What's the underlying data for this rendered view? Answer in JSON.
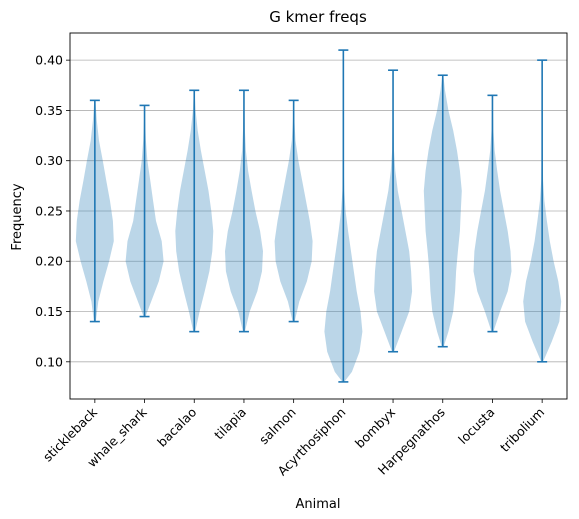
{
  "chart_data": {
    "type": "violin",
    "title": "G kmer freqs",
    "xlabel": "Animal",
    "ylabel": "Frequency",
    "ylim": [
      0.063,
      0.427
    ],
    "yticks": [
      "0.10",
      "0.15",
      "0.20",
      "0.25",
      "0.30",
      "0.35",
      "0.40"
    ],
    "grid": "horizontal",
    "colors": {
      "body": "#1f77b4",
      "body_opacity": 0.3,
      "lines": "#1f77b4",
      "grid": "#b0b0b0"
    },
    "categories": [
      "stickleback",
      "whale_shark",
      "bacalao",
      "tilapia",
      "salmon",
      "Acyrthosiphon",
      "bombyx",
      "Harpegnathos",
      "locusta",
      "tribolium"
    ],
    "series": [
      {
        "min": 0.14,
        "max": 0.36,
        "density": [
          [
            0.14,
            0.05
          ],
          [
            0.16,
            0.18
          ],
          [
            0.18,
            0.45
          ],
          [
            0.2,
            0.75
          ],
          [
            0.22,
            1.0
          ],
          [
            0.24,
            0.95
          ],
          [
            0.26,
            0.8
          ],
          [
            0.28,
            0.6
          ],
          [
            0.3,
            0.42
          ],
          [
            0.32,
            0.22
          ],
          [
            0.34,
            0.1
          ],
          [
            0.36,
            0.03
          ]
        ]
      },
      {
        "min": 0.145,
        "max": 0.355,
        "density": [
          [
            0.145,
            0.05
          ],
          [
            0.16,
            0.35
          ],
          [
            0.18,
            0.75
          ],
          [
            0.2,
            1.0
          ],
          [
            0.22,
            0.9
          ],
          [
            0.24,
            0.6
          ],
          [
            0.26,
            0.45
          ],
          [
            0.28,
            0.3
          ],
          [
            0.3,
            0.15
          ],
          [
            0.32,
            0.07
          ],
          [
            0.34,
            0.03
          ],
          [
            0.355,
            0.02
          ]
        ]
      },
      {
        "min": 0.13,
        "max": 0.37,
        "density": [
          [
            0.13,
            0.05
          ],
          [
            0.15,
            0.28
          ],
          [
            0.17,
            0.55
          ],
          [
            0.19,
            0.8
          ],
          [
            0.21,
            0.95
          ],
          [
            0.23,
            1.0
          ],
          [
            0.25,
            0.9
          ],
          [
            0.27,
            0.75
          ],
          [
            0.29,
            0.55
          ],
          [
            0.31,
            0.35
          ],
          [
            0.33,
            0.18
          ],
          [
            0.35,
            0.07
          ],
          [
            0.37,
            0.02
          ]
        ]
      },
      {
        "min": 0.13,
        "max": 0.37,
        "density": [
          [
            0.13,
            0.05
          ],
          [
            0.15,
            0.3
          ],
          [
            0.17,
            0.7
          ],
          [
            0.19,
            0.95
          ],
          [
            0.21,
            1.0
          ],
          [
            0.23,
            0.85
          ],
          [
            0.25,
            0.6
          ],
          [
            0.27,
            0.4
          ],
          [
            0.29,
            0.22
          ],
          [
            0.31,
            0.1
          ],
          [
            0.33,
            0.05
          ],
          [
            0.35,
            0.03
          ],
          [
            0.37,
            0.01
          ]
        ]
      },
      {
        "min": 0.14,
        "max": 0.36,
        "density": [
          [
            0.14,
            0.05
          ],
          [
            0.16,
            0.3
          ],
          [
            0.18,
            0.7
          ],
          [
            0.2,
            0.95
          ],
          [
            0.22,
            1.0
          ],
          [
            0.24,
            0.85
          ],
          [
            0.26,
            0.65
          ],
          [
            0.28,
            0.45
          ],
          [
            0.3,
            0.25
          ],
          [
            0.32,
            0.1
          ],
          [
            0.34,
            0.04
          ],
          [
            0.36,
            0.01
          ]
        ]
      },
      {
        "min": 0.08,
        "max": 0.41,
        "density": [
          [
            0.08,
            0.05
          ],
          [
            0.09,
            0.45
          ],
          [
            0.11,
            0.85
          ],
          [
            0.13,
            1.0
          ],
          [
            0.15,
            0.9
          ],
          [
            0.17,
            0.7
          ],
          [
            0.19,
            0.55
          ],
          [
            0.21,
            0.4
          ],
          [
            0.23,
            0.25
          ],
          [
            0.25,
            0.12
          ],
          [
            0.27,
            0.05
          ],
          [
            0.3,
            0.02
          ],
          [
            0.35,
            0.01
          ],
          [
            0.41,
            0.01
          ]
        ]
      },
      {
        "min": 0.11,
        "max": 0.39,
        "density": [
          [
            0.11,
            0.05
          ],
          [
            0.13,
            0.45
          ],
          [
            0.15,
            0.85
          ],
          [
            0.17,
            1.0
          ],
          [
            0.19,
            0.95
          ],
          [
            0.21,
            0.85
          ],
          [
            0.23,
            0.65
          ],
          [
            0.25,
            0.45
          ],
          [
            0.27,
            0.25
          ],
          [
            0.29,
            0.12
          ],
          [
            0.31,
            0.05
          ],
          [
            0.35,
            0.02
          ],
          [
            0.39,
            0.01
          ]
        ]
      },
      {
        "min": 0.115,
        "max": 0.385,
        "density": [
          [
            0.115,
            0.05
          ],
          [
            0.13,
            0.3
          ],
          [
            0.15,
            0.55
          ],
          [
            0.17,
            0.65
          ],
          [
            0.19,
            0.7
          ],
          [
            0.21,
            0.8
          ],
          [
            0.23,
            0.9
          ],
          [
            0.25,
            0.95
          ],
          [
            0.27,
            1.0
          ],
          [
            0.29,
            0.9
          ],
          [
            0.31,
            0.75
          ],
          [
            0.33,
            0.55
          ],
          [
            0.35,
            0.3
          ],
          [
            0.37,
            0.12
          ],
          [
            0.385,
            0.03
          ]
        ]
      },
      {
        "min": 0.13,
        "max": 0.365,
        "density": [
          [
            0.13,
            0.05
          ],
          [
            0.15,
            0.4
          ],
          [
            0.17,
            0.8
          ],
          [
            0.19,
            1.0
          ],
          [
            0.21,
            0.95
          ],
          [
            0.23,
            0.8
          ],
          [
            0.25,
            0.6
          ],
          [
            0.27,
            0.4
          ],
          [
            0.29,
            0.25
          ],
          [
            0.31,
            0.12
          ],
          [
            0.33,
            0.05
          ],
          [
            0.365,
            0.01
          ]
        ]
      },
      {
        "min": 0.1,
        "max": 0.4,
        "density": [
          [
            0.1,
            0.05
          ],
          [
            0.12,
            0.5
          ],
          [
            0.14,
            0.9
          ],
          [
            0.16,
            1.0
          ],
          [
            0.18,
            0.85
          ],
          [
            0.2,
            0.6
          ],
          [
            0.22,
            0.4
          ],
          [
            0.24,
            0.25
          ],
          [
            0.26,
            0.12
          ],
          [
            0.28,
            0.05
          ],
          [
            0.32,
            0.02
          ],
          [
            0.36,
            0.01
          ],
          [
            0.4,
            0.01
          ]
        ]
      }
    ]
  }
}
